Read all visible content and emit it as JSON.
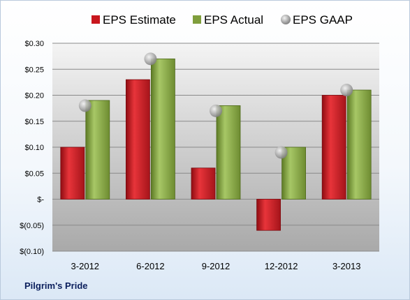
{
  "caption": "Pilgrim's Pride",
  "chart_data": {
    "type": "bar",
    "categories": [
      "3-2012",
      "6-2012",
      "9-2012",
      "12-2012",
      "3-2013"
    ],
    "series": [
      {
        "name": "EPS Estimate",
        "kind": "bar",
        "color": "#c8161e",
        "values": [
          0.1,
          0.23,
          0.06,
          -0.06,
          0.2
        ]
      },
      {
        "name": "EPS Actual",
        "kind": "bar",
        "color": "#7f9e3c",
        "values": [
          0.19,
          0.27,
          0.18,
          0.1,
          0.21
        ]
      },
      {
        "name": "EPS GAAP",
        "kind": "marker",
        "color": "#a6a6a6",
        "values": [
          0.18,
          0.27,
          0.17,
          0.09,
          0.21
        ]
      }
    ],
    "yticks": [
      {
        "value": 0.3,
        "label": "$0.30"
      },
      {
        "value": 0.25,
        "label": "$0.25"
      },
      {
        "value": 0.2,
        "label": "$0.20"
      },
      {
        "value": 0.15,
        "label": "$0.15"
      },
      {
        "value": 0.1,
        "label": "$0.10"
      },
      {
        "value": 0.05,
        "label": "$0.05"
      },
      {
        "value": 0.0,
        "label": "$-"
      },
      {
        "value": -0.05,
        "label": "$(0.05)"
      },
      {
        "value": -0.1,
        "label": "$(0.10)"
      }
    ],
    "ylim": [
      -0.1,
      0.3
    ],
    "legend_position": "top",
    "grid": true
  }
}
